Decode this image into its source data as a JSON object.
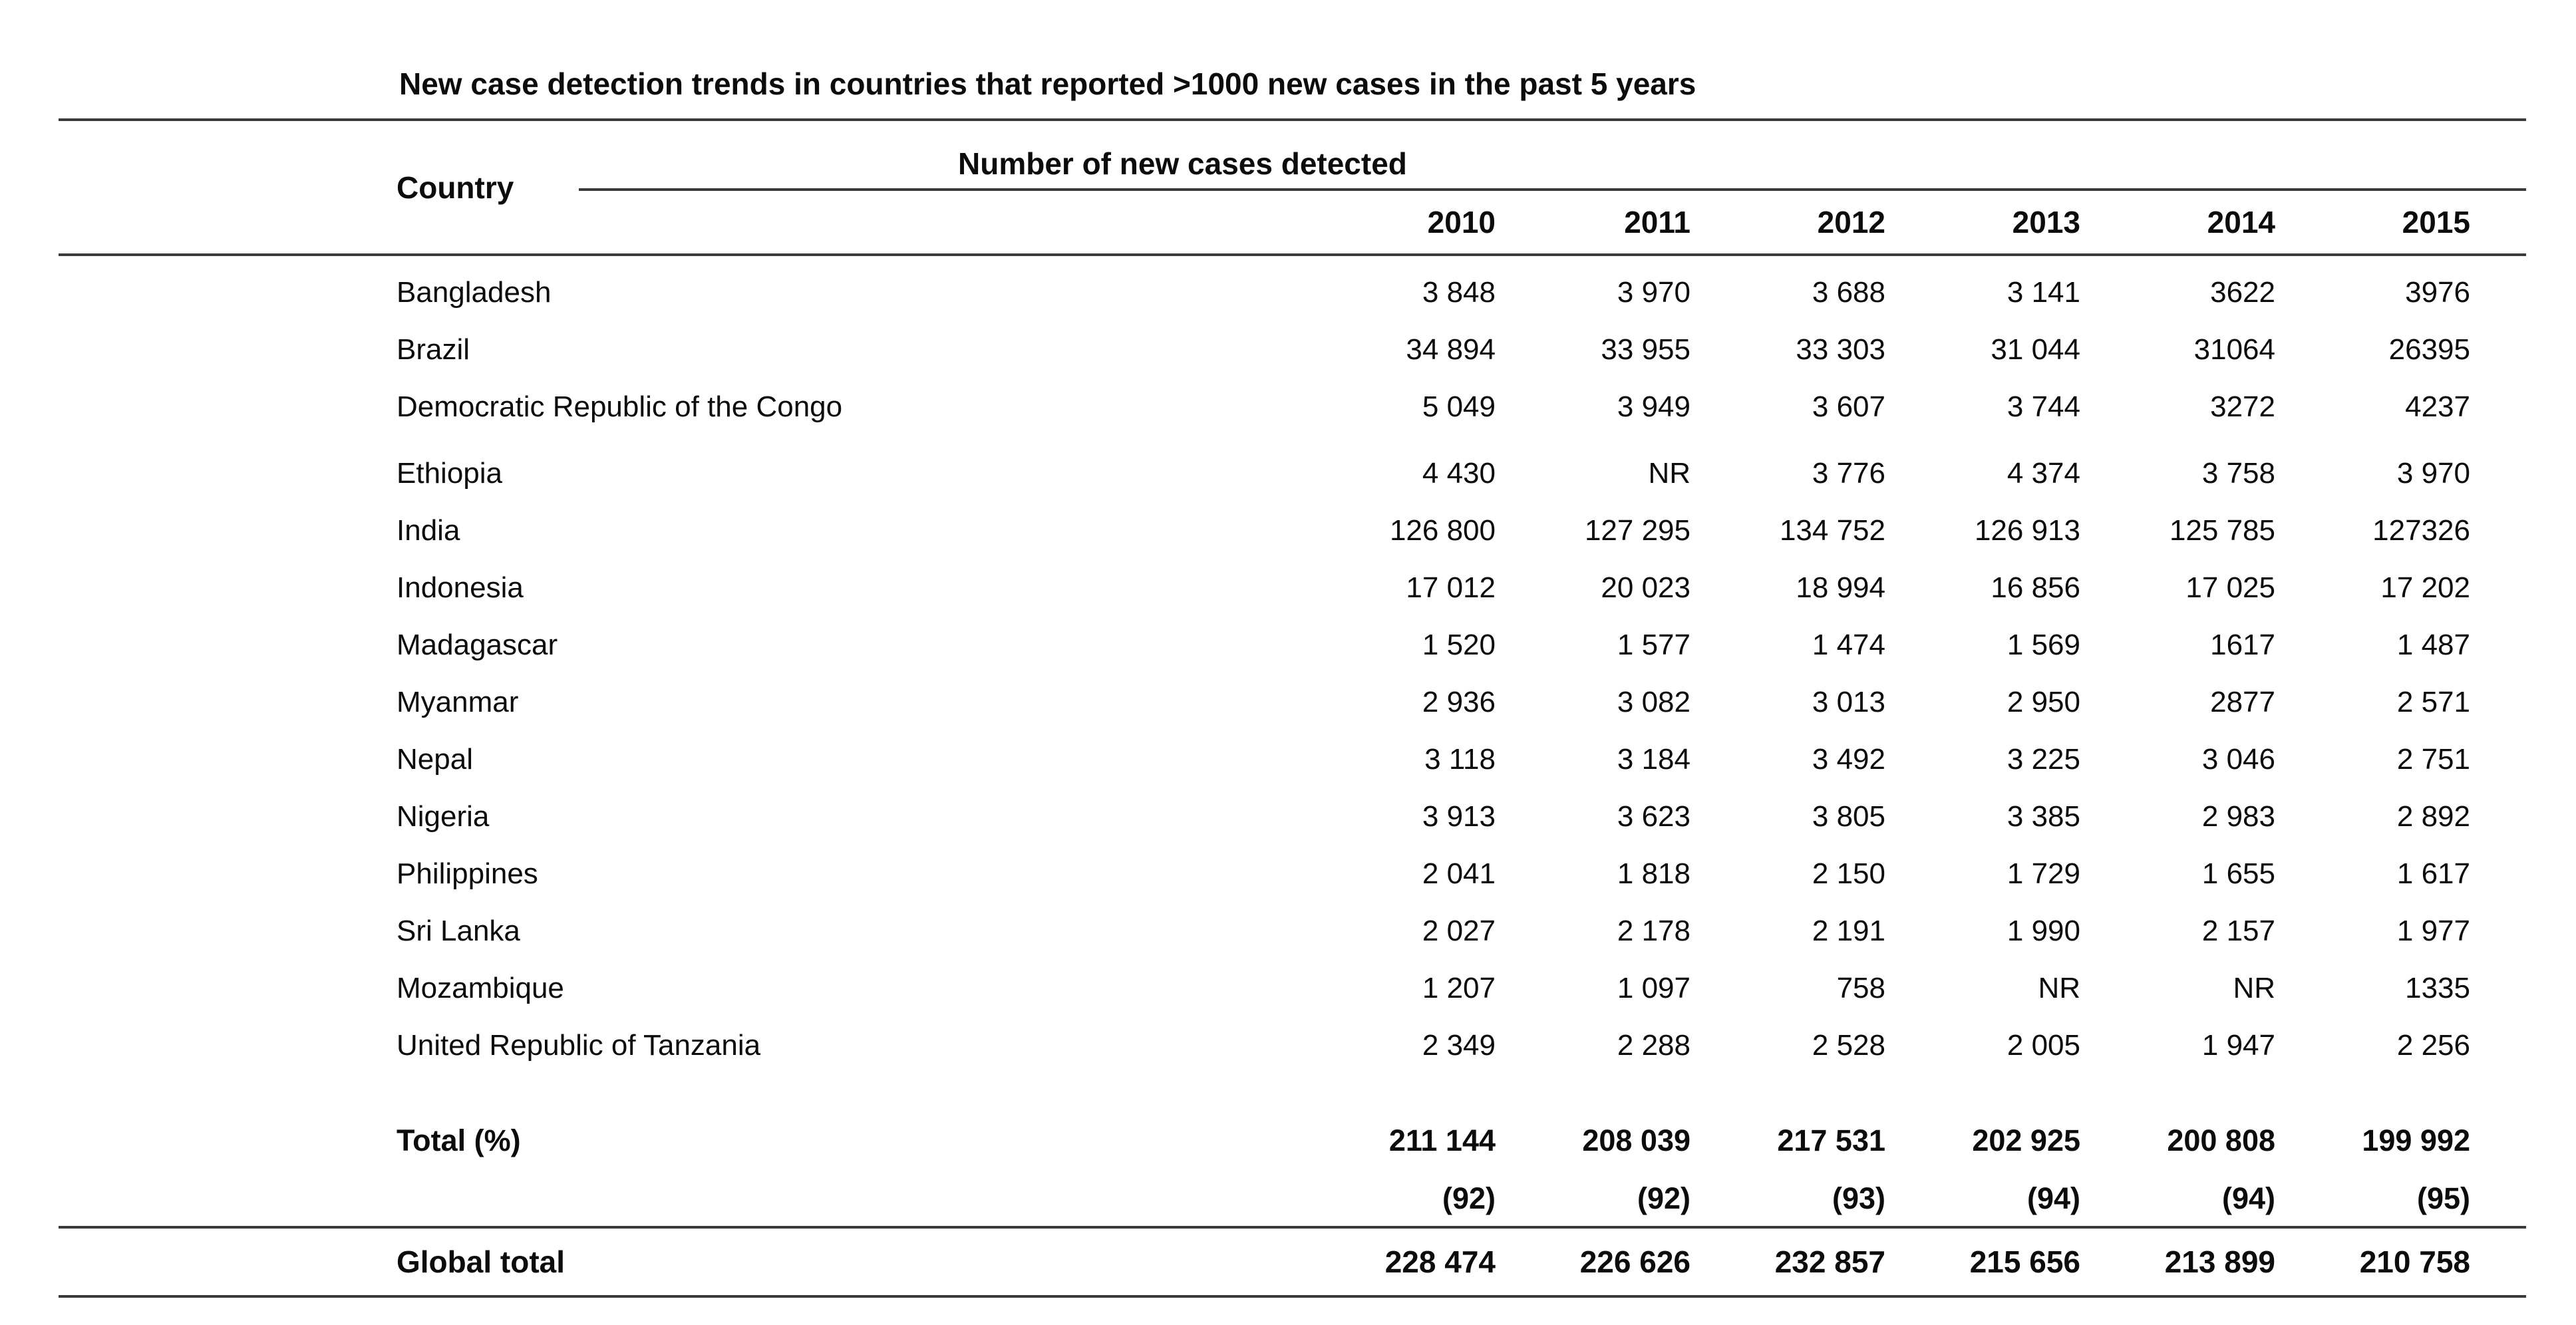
{
  "title": "New case detection trends in countries that reported >1000 new cases in the past 5 years",
  "table": {
    "country_header": "Country",
    "group_header": "Number of new cases detected",
    "years": [
      "2010",
      "2011",
      "2012",
      "2013",
      "2014",
      "2015"
    ],
    "rows": [
      {
        "country": "Bangladesh",
        "values": [
          "3 848",
          "3 970",
          "3 688",
          "3 141",
          "3622",
          "3976"
        ]
      },
      {
        "country": "Brazil",
        "values": [
          "34 894",
          "33 955",
          "33 303",
          "31 044",
          "31064",
          "26395"
        ]
      },
      {
        "country": "Democratic Republic of the Congo",
        "values": [
          "5 049",
          "3 949",
          "3 607",
          "3 744",
          "3272",
          "4237"
        ]
      },
      {
        "country": "Ethiopia",
        "values": [
          "4 430",
          "NR",
          "3 776",
          "4 374",
          "3 758",
          "3 970"
        ]
      },
      {
        "country": "India",
        "values": [
          "126 800",
          "127 295",
          "134 752",
          "126 913",
          "125 785",
          "127326"
        ]
      },
      {
        "country": "Indonesia",
        "values": [
          "17 012",
          "20 023",
          "18 994",
          "16 856",
          "17 025",
          "17 202"
        ]
      },
      {
        "country": "Madagascar",
        "values": [
          "1 520",
          "1 577",
          "1 474",
          "1 569",
          "1617",
          "1 487"
        ]
      },
      {
        "country": "Myanmar",
        "values": [
          "2 936",
          "3 082",
          "3 013",
          "2 950",
          "2877",
          "2 571"
        ]
      },
      {
        "country": "Nepal",
        "values": [
          "3 118",
          "3 184",
          "3 492",
          "3 225",
          "3 046",
          "2 751"
        ]
      },
      {
        "country": "Nigeria",
        "values": [
          "3 913",
          "3 623",
          "3 805",
          "3 385",
          "2 983",
          "2 892"
        ]
      },
      {
        "country": "Philippines",
        "values": [
          "2 041",
          "1 818",
          "2 150",
          "1 729",
          "1 655",
          "1 617"
        ]
      },
      {
        "country": "Sri Lanka",
        "values": [
          "2 027",
          "2 178",
          "2 191",
          "1 990",
          "2 157",
          "1 977"
        ]
      },
      {
        "country": "Mozambique",
        "values": [
          "1 207",
          "1 097",
          "758",
          "NR",
          "NR",
          "1335"
        ]
      },
      {
        "country": "United Republic of Tanzania",
        "values": [
          "2 349",
          "2 288",
          "2 528",
          "2 005",
          "1 947",
          "2 256"
        ]
      }
    ],
    "total": {
      "label": "Total (%)",
      "values": [
        "211 144",
        "208 039",
        "217 531",
        "202 925",
        "200 808",
        "199 992"
      ],
      "percents": [
        "(92)",
        "(92)",
        "(93)",
        "(94)",
        "(94)",
        "(95)"
      ]
    },
    "global": {
      "label": "Global total",
      "values": [
        "228 474",
        "226 626",
        "232 857",
        "215 656",
        "213 899",
        "210 758"
      ]
    }
  }
}
